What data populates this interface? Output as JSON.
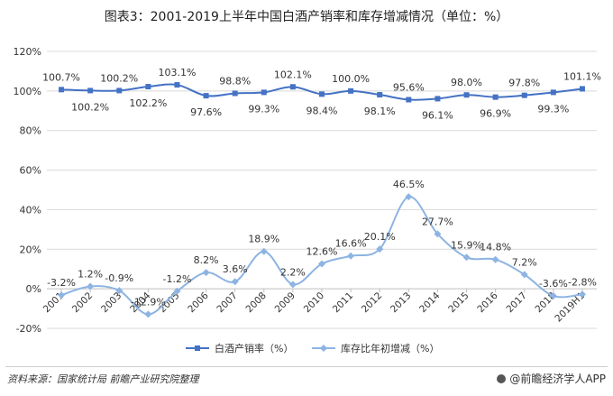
{
  "title": "图表3：2001-2019上半年中国白酒产销率和库存增减情况（单位：%）",
  "source": "资料来源：国家统计局 前瞻产业研究院整理",
  "brand": "@前瞻经济学人APP",
  "colors": {
    "series1": "#4472c4",
    "series2": "#8db4e2",
    "grid": "#d9d9d9"
  },
  "chart_data": {
    "type": "line",
    "categories": [
      "2001",
      "2002",
      "2003",
      "2004",
      "2005",
      "2006",
      "2007",
      "2008",
      "2009",
      "2010",
      "2011",
      "2012",
      "2013",
      "2014",
      "2015",
      "2016",
      "2017",
      "2018",
      "2019H1"
    ],
    "ylim": [
      -20,
      120
    ],
    "yticks": [
      "-20%",
      "0%",
      "20%",
      "40%",
      "60%",
      "80%",
      "100%",
      "120%"
    ],
    "ytick_values": [
      -20,
      0,
      20,
      40,
      60,
      80,
      100,
      120
    ],
    "grid": true,
    "legend_position": "bottom-center",
    "series": [
      {
        "name": "白酒产销率（%）",
        "marker": "square",
        "values": [
          100.7,
          100.2,
          100.2,
          102.2,
          103.1,
          97.6,
          98.8,
          99.3,
          102.1,
          98.4,
          100.0,
          98.1,
          95.6,
          96.1,
          98.0,
          96.9,
          97.8,
          99.3,
          101.1
        ],
        "labels": [
          "100.7%",
          "100.2%",
          "100.2%",
          "102.2%",
          "103.1%",
          "97.6%",
          "98.8%",
          "99.3%",
          "102.1%",
          "98.4%",
          "100.0%",
          "98.1%",
          "95.6%",
          "96.1%",
          "98.0%",
          "96.9%",
          "97.8%",
          "99.3%",
          "101.1%"
        ]
      },
      {
        "name": "库存比年初增减（%）",
        "marker": "diamond",
        "values": [
          -3.2,
          1.2,
          -0.9,
          -12.9,
          -1.2,
          8.2,
          3.6,
          18.9,
          2.2,
          12.6,
          16.6,
          20.1,
          46.5,
          27.7,
          15.9,
          14.8,
          7.2,
          -3.6,
          -2.8
        ],
        "labels": [
          "-3.2%",
          "1.2%",
          "-0.9%",
          "-12.9%",
          "-1.2%",
          "8.2%",
          "3.6%",
          "18.9%",
          "2.2%",
          "12.6%",
          "16.6%",
          "20.1%",
          "46.5%",
          "27.7%",
          "15.9%",
          "14.8%",
          "7.2%",
          "-3.6%",
          "-2.8%"
        ]
      }
    ]
  }
}
